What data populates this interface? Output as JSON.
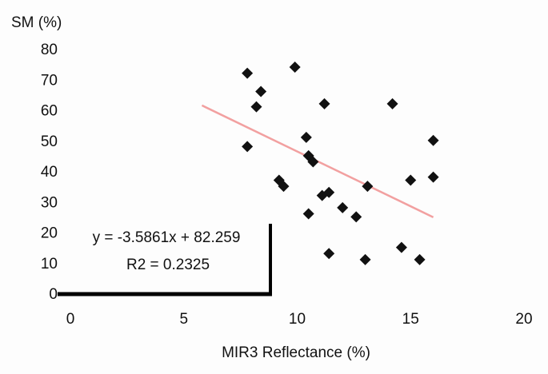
{
  "chart_data": {
    "type": "scatter",
    "title": "",
    "xlabel": "MIR3 Reflectance (%)",
    "ylabel": "SM (%)",
    "xlim": [
      0,
      20
    ],
    "ylim": [
      0,
      80
    ],
    "x_ticks": [
      "0",
      "5",
      "10",
      "15",
      "20"
    ],
    "y_ticks": [
      "0",
      "10",
      "20",
      "30",
      "40",
      "50",
      "60",
      "70",
      "80"
    ],
    "grid": false,
    "legend": "none",
    "marker_color": "#111111",
    "marker": "diamond",
    "points": [
      {
        "x": 7.8,
        "y": 72
      },
      {
        "x": 8.4,
        "y": 66
      },
      {
        "x": 8.2,
        "y": 61
      },
      {
        "x": 7.8,
        "y": 48
      },
      {
        "x": 9.9,
        "y": 74
      },
      {
        "x": 11.2,
        "y": 62
      },
      {
        "x": 14.2,
        "y": 62
      },
      {
        "x": 10.4,
        "y": 51
      },
      {
        "x": 10.5,
        "y": 45
      },
      {
        "x": 10.7,
        "y": 43
      },
      {
        "x": 9.2,
        "y": 37
      },
      {
        "x": 9.4,
        "y": 35
      },
      {
        "x": 11.4,
        "y": 33
      },
      {
        "x": 11.1,
        "y": 32
      },
      {
        "x": 13.1,
        "y": 35
      },
      {
        "x": 15.0,
        "y": 37
      },
      {
        "x": 16.0,
        "y": 38
      },
      {
        "x": 16.0,
        "y": 50
      },
      {
        "x": 12.0,
        "y": 28
      },
      {
        "x": 12.6,
        "y": 25
      },
      {
        "x": 10.5,
        "y": 26
      },
      {
        "x": 11.4,
        "y": 13
      },
      {
        "x": 13.0,
        "y": 11
      },
      {
        "x": 14.6,
        "y": 15
      },
      {
        "x": 15.4,
        "y": 11
      }
    ],
    "trendline": {
      "slope": -3.5861,
      "intercept": 82.259,
      "x_range": [
        5.8,
        16.0
      ],
      "color": "#f2a0a0"
    },
    "annotations": {
      "equation": "y = -3.5861x + 82.259",
      "r2": "R2 = 0.2325"
    }
  }
}
